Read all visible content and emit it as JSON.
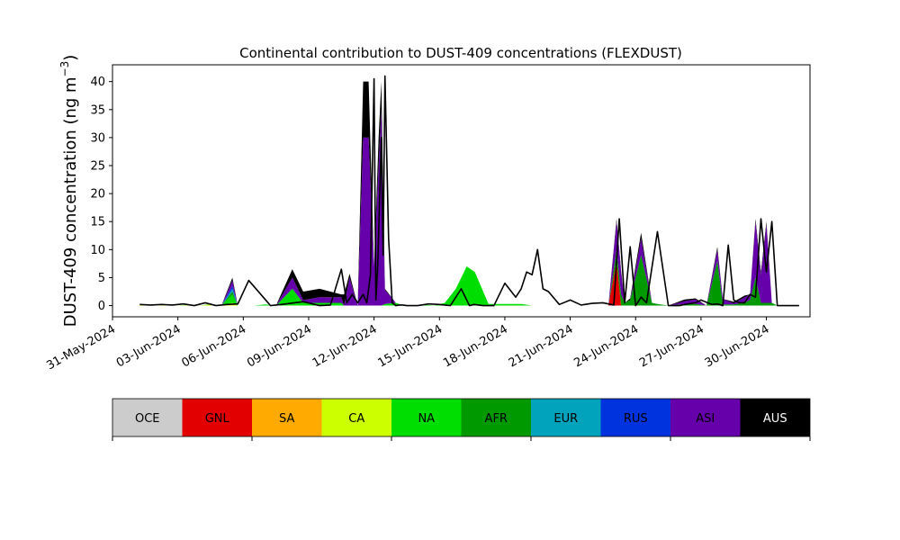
{
  "chart_data": {
    "type": "area",
    "title": "Continental contribution to DUST-409 concentrations (FLEXDUST)",
    "ylabel": "DUST-409 concentration (ng m$^{-3}$)",
    "ylabel_main": "DUST-409 concentration (ng m",
    "ylabel_sup": "−3",
    "ylabel_end": ")",
    "xlabel": "",
    "ylim": [
      -2,
      43
    ],
    "yticks": [
      0,
      5,
      10,
      15,
      20,
      25,
      30,
      35,
      40
    ],
    "x_range_days": [
      "2024-05-31",
      "2024-07-02"
    ],
    "xticks": [
      "31-May-2024",
      "03-Jun-2024",
      "06-Jun-2024",
      "09-Jun-2024",
      "12-Jun-2024",
      "15-Jun-2024",
      "18-Jun-2024",
      "21-Jun-2024",
      "24-Jun-2024",
      "27-Jun-2024",
      "30-Jun-2024"
    ],
    "legend_placement": "below",
    "series_names": [
      "OCE",
      "GNL",
      "SA",
      "CA",
      "NA",
      "AFR",
      "EUR",
      "RUS",
      "ASI",
      "AUS"
    ],
    "series_colors": [
      "#cccccc",
      "#e20000",
      "#ffaa00",
      "#ccff00",
      "#00dd00",
      "#009900",
      "#00a3bb",
      "#0033dd",
      "#6600aa",
      "#000000"
    ],
    "x": [
      "2024-06-01 06:00",
      "2024-06-02 00:00",
      "2024-06-02 12:00",
      "2024-06-03 00:00",
      "2024-06-03 12:00",
      "2024-06-04 00:00",
      "2024-06-04 12:00",
      "2024-06-05 00:00",
      "2024-06-05 12:00",
      "2024-06-05 18:00",
      "2024-06-06 00:00",
      "2024-06-06 12:00",
      "2024-06-07 00:00",
      "2024-06-07 12:00",
      "2024-06-08 06:00",
      "2024-06-08 18:00",
      "2024-06-09 12:00",
      "2024-06-10 12:00",
      "2024-06-10 15:00",
      "2024-06-10 21:00",
      "2024-06-11 06:00",
      "2024-06-11 12:00",
      "2024-06-11 18:00",
      "2024-06-12 00:00",
      "2024-06-12 05:00",
      "2024-06-12 08:00",
      "2024-06-12 12:00",
      "2024-06-13 00:00",
      "2024-06-13 09:00",
      "2024-06-13 12:00",
      "2024-06-13 15:00",
      "2024-06-13 21:00",
      "2024-06-14 06:00",
      "2024-06-14 18:00",
      "2024-06-15 06:00",
      "2024-06-15 18:00",
      "2024-06-16 06:00",
      "2024-06-16 15:00",
      "2024-06-17 06:00",
      "2024-06-17 18:00",
      "2024-06-18 06:00",
      "2024-06-18 18:00",
      "2024-06-19 06:00",
      "2024-06-19 12:00",
      "2024-06-19 18:00",
      "2024-06-20 06:00",
      "2024-06-20 18:00",
      "2024-06-21 06:00",
      "2024-06-21 18:00",
      "2024-06-22 06:00",
      "2024-06-22 18:00",
      "2024-06-23 03:00",
      "2024-06-23 08:00",
      "2024-06-23 12:00",
      "2024-06-23 18:00",
      "2024-06-24 06:00",
      "2024-06-24 18:00",
      "2024-06-25 00:00",
      "2024-06-25 12:00",
      "2024-06-26 06:00",
      "2024-06-26 18:00",
      "2024-06-27 06:00",
      "2024-06-27 18:00",
      "2024-06-28 00:00",
      "2024-06-28 12:00",
      "2024-06-29 00:00",
      "2024-06-29 06:00",
      "2024-06-29 12:00",
      "2024-06-29 18:00",
      "2024-06-30 00:00",
      "2024-06-30 06:00",
      "2024-06-30 12:00",
      "2024-07-01 00:00"
    ],
    "series": [
      {
        "name": "OCE",
        "values": [
          0,
          0,
          0,
          0,
          0,
          0,
          0,
          0,
          0,
          0,
          0,
          0,
          0,
          0,
          0,
          0,
          0,
          0,
          0,
          0,
          0,
          0,
          0,
          0,
          0,
          0,
          0,
          0,
          0,
          0,
          0,
          0,
          0,
          0,
          0,
          0,
          0,
          0,
          0,
          0,
          0,
          0,
          0,
          0,
          0,
          0,
          0,
          0,
          0,
          0,
          0,
          0,
          0,
          0,
          0,
          0,
          0,
          0,
          0,
          0,
          0,
          0,
          0,
          0,
          0,
          0,
          0,
          0,
          0,
          0,
          0,
          0,
          0
        ]
      },
      {
        "name": "GNL",
        "values": [
          0,
          0,
          0,
          0,
          0,
          0,
          0,
          0,
          0,
          0,
          0,
          0,
          0,
          0,
          0,
          0,
          0,
          0,
          0,
          0,
          0,
          0,
          0,
          0,
          0,
          0,
          0,
          0,
          0,
          0,
          0,
          0,
          0,
          0,
          0,
          0,
          0,
          0,
          0,
          0,
          0,
          0,
          0,
          0,
          0,
          0,
          0,
          0,
          0,
          0,
          0,
          8,
          0,
          0,
          0,
          0,
          0,
          0,
          0,
          0,
          0,
          0,
          0,
          0,
          0,
          0,
          0,
          0,
          0,
          0,
          0,
          0,
          0
        ]
      },
      {
        "name": "SA",
        "values": [
          0,
          0,
          0,
          0,
          0,
          0,
          0,
          0,
          0,
          0,
          0,
          0,
          0,
          0,
          0,
          0,
          0,
          0,
          0,
          0,
          0,
          0,
          0,
          0,
          0,
          0,
          0,
          0,
          0,
          0,
          0,
          0,
          0,
          0,
          0,
          0,
          0,
          0,
          0,
          0,
          0,
          0,
          0,
          0,
          0,
          0,
          0,
          0,
          0,
          0,
          0,
          0,
          0,
          0,
          0,
          0,
          0,
          0,
          0,
          0,
          0,
          0,
          0,
          0,
          0,
          0,
          0,
          0,
          0,
          0,
          0,
          0,
          0
        ]
      },
      {
        "name": "CA",
        "values": [
          0.1,
          0,
          0.1,
          0,
          0.1,
          0,
          0.2,
          0,
          0.5,
          0,
          0,
          0,
          0,
          0,
          0,
          0,
          0,
          0,
          0,
          0,
          0,
          0,
          0,
          0,
          0,
          0,
          0,
          0,
          0,
          0,
          0,
          0,
          0,
          0,
          0,
          0,
          0,
          0,
          0,
          0,
          0,
          0,
          0,
          0,
          0,
          0,
          0,
          0,
          0,
          0,
          0,
          0,
          0,
          0,
          0,
          0,
          0,
          0,
          0,
          0,
          0,
          0,
          0,
          0,
          0,
          0,
          0,
          0,
          0,
          0,
          0,
          0,
          0
        ]
      },
      {
        "name": "NA",
        "values": [
          0,
          0,
          0,
          0,
          0.1,
          0,
          0.1,
          0,
          1.5,
          0,
          0,
          0,
          0.2,
          0,
          3,
          0.5,
          0.5,
          0.5,
          0,
          0,
          0,
          0,
          0,
          0,
          0,
          0,
          0.3,
          0.5,
          0,
          0,
          0,
          0,
          0.2,
          0,
          0.5,
          3,
          7,
          6,
          0.3,
          0.3,
          0.3,
          0.3,
          0,
          0,
          0,
          0,
          0,
          0,
          0,
          0,
          0,
          0,
          0,
          0,
          0,
          0,
          0,
          0,
          0,
          0,
          0,
          0,
          0,
          0,
          0,
          0,
          0,
          0,
          0,
          0,
          0,
          0,
          0
        ]
      },
      {
        "name": "AFR",
        "values": [
          0,
          0,
          0,
          0,
          0,
          0,
          0,
          0,
          0.5,
          0,
          0,
          0,
          0,
          0,
          0,
          0,
          0,
          0,
          0,
          0,
          0,
          0,
          0,
          0,
          0,
          0,
          0,
          0,
          0,
          0,
          0,
          0,
          0,
          0,
          0,
          0,
          0,
          0,
          0,
          0,
          0,
          0,
          0,
          0,
          0,
          0,
          0,
          0,
          0,
          0,
          0,
          2,
          2,
          0.5,
          1,
          9,
          0.5,
          0.3,
          0,
          0.3,
          0.3,
          0,
          8,
          0.2,
          0.2,
          0.5,
          1,
          5,
          0.5,
          0.5,
          0.5,
          0,
          0
        ]
      },
      {
        "name": "EUR",
        "values": [
          0,
          0,
          0,
          0,
          0,
          0,
          0,
          0,
          0.5,
          0,
          0,
          0,
          0,
          0,
          0,
          0,
          0,
          0,
          0,
          0,
          0,
          0,
          0,
          0,
          0,
          0,
          0,
          0,
          0,
          0,
          0,
          0,
          0,
          0,
          0,
          0,
          0,
          0,
          0,
          0,
          0,
          0,
          0,
          0,
          0,
          0,
          0,
          0,
          0,
          0,
          0,
          0,
          0,
          0,
          0,
          0,
          0,
          0,
          0,
          0,
          0,
          0,
          0,
          0,
          0,
          0,
          0,
          0,
          0,
          0,
          0,
          0,
          0
        ]
      },
      {
        "name": "RUS",
        "values": [
          0,
          0,
          0,
          0,
          0,
          0,
          0,
          0,
          0.5,
          0,
          0,
          0,
          0,
          0,
          0,
          0,
          0,
          0,
          0,
          0,
          0,
          0,
          0,
          0,
          0,
          0,
          0,
          0,
          0,
          0,
          0,
          0,
          0,
          0,
          0,
          0,
          0,
          0,
          0,
          0,
          0,
          0,
          0,
          0,
          0,
          0,
          0,
          0,
          0,
          0,
          0,
          0,
          0,
          0,
          0,
          0,
          0,
          0,
          0,
          0,
          0,
          0,
          0,
          0,
          0,
          0,
          0,
          0,
          0,
          0,
          0,
          0,
          0
        ]
      },
      {
        "name": "ASI",
        "values": [
          0,
          0,
          0,
          0,
          0,
          0,
          0,
          0,
          1,
          0,
          0,
          0,
          0,
          0,
          2,
          0.5,
          1,
          1,
          0,
          5,
          0,
          30,
          30,
          7,
          25,
          35,
          2.5,
          0,
          0,
          0,
          0,
          0,
          0,
          0,
          0,
          0,
          0,
          0,
          0,
          0,
          0,
          0,
          0,
          0,
          0,
          0,
          0,
          0,
          0,
          0,
          0,
          5,
          4,
          0,
          0,
          3,
          0,
          0,
          0,
          0.5,
          0.8,
          0,
          2,
          1,
          0.2,
          1,
          1,
          10,
          5,
          14,
          0,
          0,
          0
        ]
      },
      {
        "name": "AUS",
        "values": [
          0,
          0,
          0,
          0,
          0,
          0,
          0,
          0,
          0.5,
          0,
          0,
          0,
          0,
          0,
          1.5,
          1.5,
          1.5,
          0.5,
          2,
          0.7,
          0,
          10,
          10,
          0,
          5,
          5,
          0.2,
          0,
          0,
          0,
          0,
          0,
          0,
          0,
          0,
          0,
          0,
          0,
          0,
          0,
          0,
          0,
          0,
          0,
          0,
          0,
          0,
          0,
          0,
          0,
          0,
          0.5,
          0.3,
          0,
          0.3,
          1,
          0,
          0,
          0,
          0.3,
          0.2,
          0,
          0.5,
          0,
          0.3,
          0.3,
          0,
          0.5,
          0.5,
          0.5,
          0,
          0,
          0
        ]
      }
    ],
    "total_peaks": {
      "x": [
        "2024-06-01 06:00",
        "2024-06-01 18:00",
        "2024-06-02 06:00",
        "2024-06-02 18:00",
        "2024-06-03 06:00",
        "2024-06-03 18:00",
        "2024-06-04 06:00",
        "2024-06-04 18:00",
        "2024-06-05 06:00",
        "2024-06-05 18:00",
        "2024-06-06 06:00",
        "2024-06-07 06:00",
        "2024-06-07 18:00",
        "2024-06-08 18:00",
        "2024-06-09 12:00",
        "2024-06-10 00:00",
        "2024-06-10 12:00",
        "2024-06-10 18:00",
        "2024-06-11 00:00",
        "2024-06-11 06:00",
        "2024-06-11 12:00",
        "2024-06-11 16:00",
        "2024-06-11 20:00",
        "2024-06-12 00:00",
        "2024-06-12 02:00",
        "2024-06-12 04:00",
        "2024-06-12 08:00",
        "2024-06-12 10:00",
        "2024-06-12 12:00",
        "2024-06-12 16:00",
        "2024-06-12 20:00",
        "2024-06-13 00:00",
        "2024-06-13 04:00",
        "2024-06-13 08:00",
        "2024-06-13 12:00",
        "2024-06-14 00:00",
        "2024-06-14 12:00",
        "2024-06-15 00:00",
        "2024-06-15 12:00",
        "2024-06-16 00:00",
        "2024-06-16 09:00",
        "2024-06-16 14:00",
        "2024-06-17 00:00",
        "2024-06-17 12:00",
        "2024-06-18 00:00",
        "2024-06-18 12:00",
        "2024-06-18 18:00",
        "2024-06-19 00:00",
        "2024-06-19 06:00",
        "2024-06-19 12:00",
        "2024-06-19 18:00",
        "2024-06-20 00:00",
        "2024-06-20 12:00",
        "2024-06-21 00:00",
        "2024-06-21 12:00",
        "2024-06-22 00:00",
        "2024-06-22 12:00",
        "2024-06-23 00:00",
        "2024-06-23 06:00",
        "2024-06-23 12:00",
        "2024-06-23 18:00",
        "2024-06-24 00:00",
        "2024-06-24 06:00",
        "2024-06-24 12:00",
        "2024-06-25 00:00",
        "2024-06-25 12:00",
        "2024-06-26 00:00",
        "2024-06-26 06:00",
        "2024-06-26 18:00",
        "2024-06-27 00:00",
        "2024-06-27 12:00",
        "2024-06-27 18:00",
        "2024-06-28 00:00",
        "2024-06-28 06:00",
        "2024-06-28 12:00",
        "2024-06-28 18:00",
        "2024-06-29 00:00",
        "2024-06-29 06:00",
        "2024-06-29 12:00",
        "2024-06-29 18:00",
        "2024-06-30 00:00",
        "2024-06-30 06:00",
        "2024-06-30 12:00",
        "2024-07-01 00:00",
        "2024-07-01 12:00"
      ],
      "values": [
        0.2,
        0.1,
        0.2,
        0.1,
        0.3,
        0,
        0.5,
        0,
        0.2,
        0.3,
        4.5,
        0,
        0.2,
        0.7,
        0,
        0.1,
        6.5,
        0.5,
        2,
        0.5,
        2,
        0.5,
        5.5,
        40.5,
        1,
        7,
        30,
        9,
        41,
        12,
        0.5,
        0,
        0.1,
        0.1,
        0,
        0,
        0.3,
        0.2,
        0,
        3,
        0,
        0.2,
        0,
        0,
        4,
        1.5,
        3,
        6,
        5.5,
        10,
        3,
        2.5,
        0.2,
        1,
        0.1,
        0.4,
        0.5,
        0.1,
        15.5,
        0.5,
        10.5,
        0,
        1.5,
        0.5,
        13.2,
        0,
        0,
        0.2,
        0.5,
        1,
        0.2,
        0.3,
        0,
        10.8,
        1,
        0.5,
        0.5,
        2,
        1.5,
        15.5,
        6,
        15,
        0,
        0,
        0
      ]
    }
  },
  "legend": {
    "items": [
      "OCE",
      "GNL",
      "SA",
      "CA",
      "NA",
      "AFR",
      "EUR",
      "RUS",
      "ASI",
      "AUS"
    ],
    "colors": [
      "#cccccc",
      "#e20000",
      "#ffaa00",
      "#ccff00",
      "#00dd00",
      "#009900",
      "#00a3bb",
      "#0033dd",
      "#6600aa",
      "#000000"
    ],
    "text_colors": [
      "#000000",
      "#000000",
      "#000000",
      "#000000",
      "#000000",
      "#000000",
      "#000000",
      "#000000",
      "#000000",
      "#ffffff"
    ]
  }
}
